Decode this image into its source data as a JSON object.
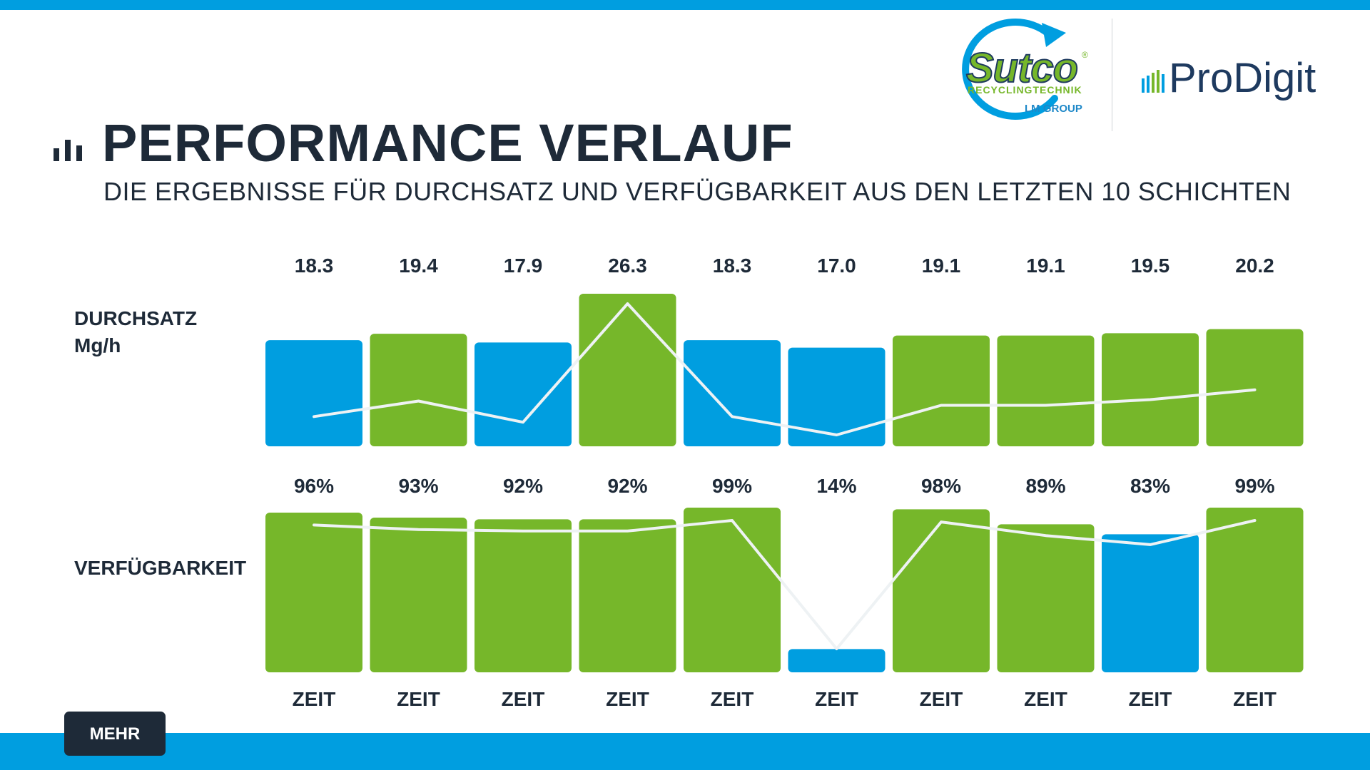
{
  "header": {
    "title": "PERFORMANCE VERLAUF",
    "subtitle": "DIE ERGEBNISSE FÜR DURCHSATZ UND VERFÜGBARKEIT AUS DEN LETZTEN 10 SCHICHTEN",
    "title_icon": "bar-chart-icon"
  },
  "logos": {
    "sutco_name": "Sutco",
    "sutco_registered": "®",
    "sutco_sub": "RECYCLINGTECHNIK",
    "sutco_group": "LM GROUP",
    "prodigit_name": "ProDigit"
  },
  "rows": {
    "durchsatz_label_1": "DURCHSATZ",
    "durchsatz_label_2": "Mg/h",
    "verfuegbarkeit_label": "VERFÜGBARKEIT"
  },
  "colors": {
    "green": "#76b72a",
    "blue": "#009ee0",
    "line": "#eef2f4",
    "text": "#1e2a38"
  },
  "chart_data": [
    {
      "type": "bar",
      "title": "DURCHSATZ Mg/h",
      "categories": [
        "ZEIT",
        "ZEIT",
        "ZEIT",
        "ZEIT",
        "ZEIT",
        "ZEIT",
        "ZEIT",
        "ZEIT",
        "ZEIT",
        "ZEIT"
      ],
      "values": [
        18.3,
        19.4,
        17.9,
        26.3,
        18.3,
        17.0,
        19.1,
        19.1,
        19.5,
        20.2
      ],
      "value_labels": [
        "18.3",
        "19.4",
        "17.9",
        "26.3",
        "18.3",
        "17.0",
        "19.1",
        "19.1",
        "19.5",
        "20.2"
      ],
      "bar_status": [
        "blue",
        "green",
        "blue",
        "green",
        "blue",
        "blue",
        "green",
        "green",
        "green",
        "green"
      ],
      "overlay_line": true
    },
    {
      "type": "bar",
      "title": "VERFÜGBARKEIT",
      "categories": [
        "ZEIT",
        "ZEIT",
        "ZEIT",
        "ZEIT",
        "ZEIT",
        "ZEIT",
        "ZEIT",
        "ZEIT",
        "ZEIT",
        "ZEIT"
      ],
      "values": [
        96,
        93,
        92,
        92,
        99,
        14,
        98,
        89,
        83,
        99
      ],
      "value_labels": [
        "96%",
        "93%",
        "92%",
        "92%",
        "99%",
        "14%",
        "98%",
        "89%",
        "83%",
        "99%"
      ],
      "bar_status": [
        "green",
        "green",
        "green",
        "green",
        "green",
        "blue",
        "green",
        "green",
        "blue",
        "green"
      ],
      "overlay_line": true
    }
  ],
  "footer": {
    "more_button": "MEHR"
  }
}
